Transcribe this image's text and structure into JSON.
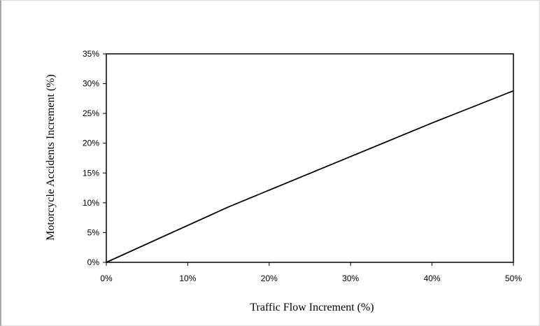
{
  "chart_data": {
    "type": "line",
    "title": "",
    "xlabel": "Traffic  Flow Increment  (%)",
    "ylabel": "Motorcycle  Accidents  Increment  (%)",
    "xlim": [
      0,
      50
    ],
    "ylim": [
      0,
      35
    ],
    "x_ticks": [
      "0%",
      "10%",
      "20%",
      "30%",
      "40%",
      "50%"
    ],
    "y_ticks": [
      "0%",
      "5%",
      "10%",
      "15%",
      "20%",
      "25%",
      "30%",
      "35%"
    ],
    "grid": false,
    "legend": "none",
    "series": [
      {
        "x": [
          0,
          15,
          40,
          50
        ],
        "y": [
          0,
          9.3,
          23.4,
          28.8
        ]
      }
    ],
    "colors": {
      "line": "#000000",
      "axis": "#000000",
      "frame": "#a6a6a6"
    }
  }
}
